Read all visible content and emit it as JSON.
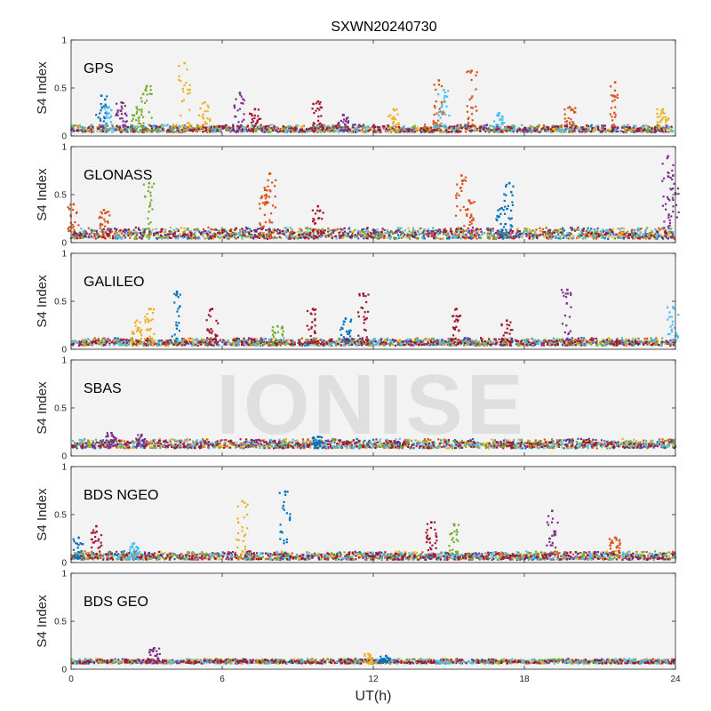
{
  "chart_data": {
    "type": "scatter",
    "title": "SXWN20240730",
    "xlabel": "UT(h)",
    "ylabel": "S4 Index",
    "xlim": [
      0,
      24
    ],
    "ylim": [
      0,
      1
    ],
    "x_ticks": [
      0,
      6,
      12,
      18,
      24
    ],
    "y_ticks": [
      0,
      0.5,
      1
    ],
    "x_tick_labels": [
      "0",
      "6",
      "12",
      "18",
      "24"
    ],
    "y_tick_labels": [
      "0",
      "0.5",
      "1"
    ],
    "watermark": "IONISE",
    "colors": [
      "#0072BD",
      "#D95319",
      "#EDB120",
      "#7E2F8E",
      "#77AC30",
      "#4DBEEE",
      "#A2142F"
    ],
    "panels": [
      {
        "label": "GPS",
        "baseline": [
          0.04,
          0.12
        ],
        "bursts": [
          {
            "x": 1.2,
            "y": 0.42,
            "c": 0
          },
          {
            "x": 1.5,
            "y": 0.3,
            "c": 5
          },
          {
            "x": 2.0,
            "y": 0.35,
            "c": 3
          },
          {
            "x": 2.6,
            "y": 0.3,
            "c": 4
          },
          {
            "x": 3.0,
            "y": 0.52,
            "c": 4
          },
          {
            "x": 4.5,
            "y": 0.76,
            "c": 2
          },
          {
            "x": 5.3,
            "y": 0.35,
            "c": 2
          },
          {
            "x": 6.7,
            "y": 0.45,
            "c": 3
          },
          {
            "x": 7.3,
            "y": 0.28,
            "c": 6
          },
          {
            "x": 9.8,
            "y": 0.36,
            "c": 6
          },
          {
            "x": 10.8,
            "y": 0.22,
            "c": 3
          },
          {
            "x": 12.8,
            "y": 0.28,
            "c": 2
          },
          {
            "x": 14.6,
            "y": 0.58,
            "c": 1
          },
          {
            "x": 14.8,
            "y": 0.48,
            "c": 5
          },
          {
            "x": 15.9,
            "y": 0.68,
            "c": 1
          },
          {
            "x": 17.0,
            "y": 0.24,
            "c": 5
          },
          {
            "x": 19.8,
            "y": 0.3,
            "c": 1
          },
          {
            "x": 21.6,
            "y": 0.56,
            "c": 1
          },
          {
            "x": 23.5,
            "y": 0.28,
            "c": 2
          }
        ]
      },
      {
        "label": "GLONASS",
        "baseline": [
          0.04,
          0.16
        ],
        "bursts": [
          {
            "x": 0.1,
            "y": 0.4,
            "c": 1
          },
          {
            "x": 1.3,
            "y": 0.34,
            "c": 1
          },
          {
            "x": 3.1,
            "y": 0.62,
            "c": 4
          },
          {
            "x": 7.7,
            "y": 0.55,
            "c": 1
          },
          {
            "x": 7.9,
            "y": 0.72,
            "c": 1
          },
          {
            "x": 9.8,
            "y": 0.38,
            "c": 6
          },
          {
            "x": 15.5,
            "y": 0.7,
            "c": 1
          },
          {
            "x": 15.8,
            "y": 0.44,
            "c": 1
          },
          {
            "x": 17.1,
            "y": 0.36,
            "c": 0
          },
          {
            "x": 17.4,
            "y": 0.62,
            "c": 0
          },
          {
            "x": 23.7,
            "y": 0.9,
            "c": 3
          },
          {
            "x": 23.9,
            "y": 0.7,
            "c": 3
          }
        ]
      },
      {
        "label": "GALILEO",
        "baseline": [
          0.04,
          0.12
        ],
        "bursts": [
          {
            "x": 2.6,
            "y": 0.3,
            "c": 2
          },
          {
            "x": 3.1,
            "y": 0.42,
            "c": 2
          },
          {
            "x": 4.2,
            "y": 0.6,
            "c": 0
          },
          {
            "x": 5.6,
            "y": 0.42,
            "c": 6
          },
          {
            "x": 8.2,
            "y": 0.24,
            "c": 4
          },
          {
            "x": 9.6,
            "y": 0.42,
            "c": 6
          },
          {
            "x": 10.9,
            "y": 0.32,
            "c": 0
          },
          {
            "x": 11.6,
            "y": 0.58,
            "c": 6
          },
          {
            "x": 15.3,
            "y": 0.42,
            "c": 6
          },
          {
            "x": 17.3,
            "y": 0.3,
            "c": 6
          },
          {
            "x": 19.7,
            "y": 0.62,
            "c": 3
          },
          {
            "x": 23.9,
            "y": 0.44,
            "c": 5
          }
        ]
      },
      {
        "label": "SBAS",
        "baseline": [
          0.08,
          0.18
        ],
        "bursts": [
          {
            "x": 1.6,
            "y": 0.24,
            "c": 3
          },
          {
            "x": 2.8,
            "y": 0.22,
            "c": 3
          },
          {
            "x": 9.8,
            "y": 0.2,
            "c": 0
          }
        ]
      },
      {
        "label": "BDS NGEO",
        "baseline": [
          0.03,
          0.12
        ],
        "bursts": [
          {
            "x": 0.3,
            "y": 0.26,
            "c": 0
          },
          {
            "x": 1.0,
            "y": 0.38,
            "c": 6
          },
          {
            "x": 2.5,
            "y": 0.2,
            "c": 5
          },
          {
            "x": 6.8,
            "y": 0.64,
            "c": 2
          },
          {
            "x": 8.5,
            "y": 0.74,
            "c": 0
          },
          {
            "x": 14.3,
            "y": 0.42,
            "c": 6
          },
          {
            "x": 15.2,
            "y": 0.4,
            "c": 4
          },
          {
            "x": 19.1,
            "y": 0.54,
            "c": 3
          },
          {
            "x": 21.6,
            "y": 0.26,
            "c": 1
          }
        ]
      },
      {
        "label": "BDS GEO",
        "baseline": [
          0.06,
          0.11
        ],
        "bursts": [
          {
            "x": 3.3,
            "y": 0.22,
            "c": 3
          },
          {
            "x": 11.8,
            "y": 0.16,
            "c": 2
          },
          {
            "x": 12.5,
            "y": 0.14,
            "c": 0
          }
        ]
      }
    ]
  }
}
